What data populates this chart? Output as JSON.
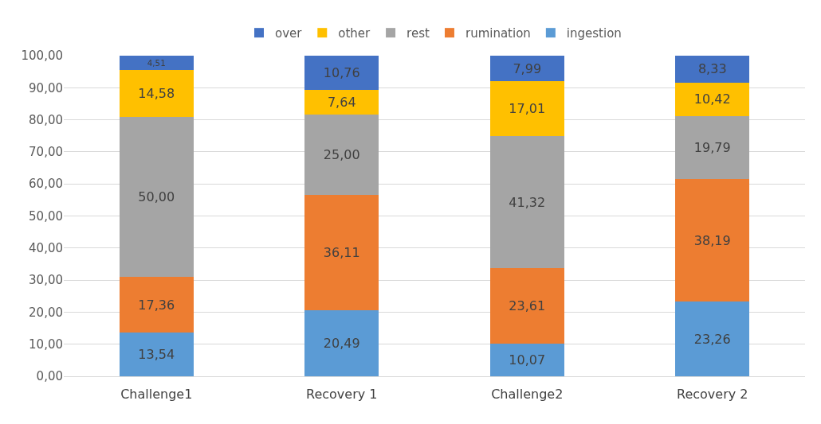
{
  "chart_data": {
    "type": "bar",
    "stacked": true,
    "categories": [
      "Challenge1",
      "Recovery 1",
      "Challenge2",
      "Recovery 2"
    ],
    "series": [
      {
        "name": "ingestion",
        "color": "#5b9bd5",
        "values": [
          13.54,
          20.49,
          10.07,
          23.26
        ],
        "value_labels": [
          "13,54",
          "20,49",
          "10,07",
          "23,26"
        ]
      },
      {
        "name": "rumination",
        "color": "#ed7d31",
        "values": [
          17.36,
          36.11,
          23.61,
          38.19
        ],
        "value_labels": [
          "17,36",
          "36,11",
          "23,61",
          "38,19"
        ]
      },
      {
        "name": "rest",
        "color": "#a5a5a5",
        "values": [
          50.0,
          25.0,
          41.32,
          19.79
        ],
        "value_labels": [
          "50,00",
          "25,00",
          "41,32",
          "19,79"
        ]
      },
      {
        "name": "other",
        "color": "#ffc000",
        "values": [
          14.58,
          7.64,
          17.01,
          10.42
        ],
        "value_labels": [
          "14,58",
          "7,64",
          "17,01",
          "10,42"
        ]
      },
      {
        "name": "over",
        "color": "#4472c4",
        "values": [
          4.51,
          10.76,
          7.99,
          8.33
        ],
        "value_labels": [
          "4,51",
          "10,76",
          "7,99",
          "8,33"
        ]
      }
    ],
    "ylim": [
      0,
      100
    ],
    "yticks": [
      {
        "value": 0,
        "label": "0,00"
      },
      {
        "value": 10,
        "label": "10,00"
      },
      {
        "value": 20,
        "label": "20,00"
      },
      {
        "value": 30,
        "label": "30,00"
      },
      {
        "value": 40,
        "label": "40,00"
      },
      {
        "value": 50,
        "label": "50,00"
      },
      {
        "value": 60,
        "label": "60,00"
      },
      {
        "value": 70,
        "label": "70,00"
      },
      {
        "value": 80,
        "label": "80,00"
      },
      {
        "value": 90,
        "label": "90,00"
      },
      {
        "value": 100,
        "label": "100,00"
      }
    ],
    "grid": "y",
    "legend": "top"
  }
}
